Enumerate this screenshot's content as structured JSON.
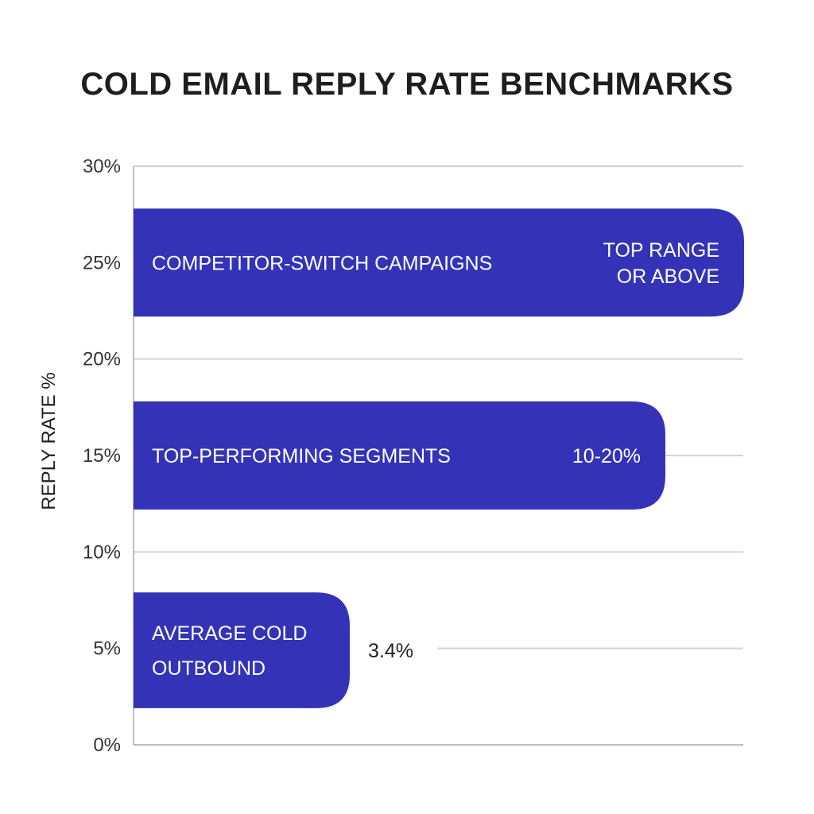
{
  "title": "COLD EMAIL REPLY RATE BENCHMARKS",
  "colors": {
    "bar": "#3433B8",
    "grid": "#d4d4d4",
    "axis": "#bdbdbd"
  },
  "chart_data": {
    "type": "bar",
    "orientation": "horizontal",
    "title": "COLD EMAIL REPLY RATE BENCHMARKS",
    "ylabel": "REPLY RATE %",
    "xlabel": "",
    "axis_range": [
      0,
      30
    ],
    "tick_labels": [
      "0%",
      "5%",
      "10%",
      "15%",
      "20%",
      "25%",
      "30%"
    ],
    "grid": true,
    "bars": [
      {
        "label_lines": [
          "COMPETITOR-SWITCH CAMPAIGNS"
        ],
        "value_lines": [
          "TOP RANGE",
          "OR ABOVE"
        ],
        "value_position": "inside",
        "band": [
          22.2,
          27.8
        ]
      },
      {
        "label_lines": [
          "TOP-PERFORMING SEGMENTS"
        ],
        "value_lines": [
          "10-20%"
        ],
        "value_position": "inside",
        "band": [
          12.2,
          17.8
        ]
      },
      {
        "label_lines": [
          "AVERAGE COLD",
          "OUTBOUND"
        ],
        "value_lines": [
          "3.4%"
        ],
        "value_position": "outside",
        "band": [
          1.9,
          7.9
        ]
      }
    ]
  }
}
